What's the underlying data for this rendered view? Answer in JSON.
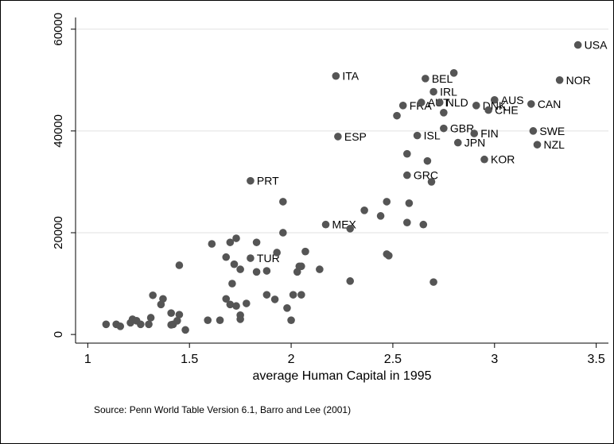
{
  "chart_data": {
    "type": "scatter",
    "xlabel": "average Human Capital in 1995",
    "note": "Source: Penn World Table Version 6.1, Barro and Lee (2001)",
    "xlim": [
      0.94,
      3.56
    ],
    "ylim": [
      -1700,
      62300
    ],
    "xticks": [
      1,
      1.5,
      2,
      2.5,
      3,
      3.5
    ],
    "yticks": [
      0,
      20000,
      40000,
      60000
    ],
    "grid": true,
    "color": "#555555",
    "x": [
      3.41,
      2.22,
      2.66,
      2.7,
      2.55,
      2.64,
      2.73,
      3.0,
      2.91,
      2.97,
      3.18,
      3.32,
      2.75,
      2.62,
      2.9,
      2.82,
      3.19,
      3.21,
      2.23,
      2.95,
      1.8,
      2.57,
      2.17,
      1.8,
      2.8,
      2.52,
      2.75,
      2.57,
      2.67,
      2.69,
      2.47,
      2.58,
      2.36,
      2.44,
      1.96,
      2.57,
      2.65,
      2.29,
      1.96,
      2.47,
      2.48,
      2.07,
      1.61,
      1.7,
      1.73,
      1.83,
      1.93,
      1.45,
      1.68,
      1.72,
      1.75,
      1.83,
      1.88,
      2.04,
      2.05,
      2.03,
      2.14,
      2.29,
      2.7,
      1.71,
      1.32,
      1.37,
      1.36,
      1.68,
      1.7,
      1.73,
      1.78,
      1.88,
      1.92,
      2.01,
      2.05,
      1.41,
      1.45,
      1.75,
      1.75,
      1.98,
      2.0,
      1.42,
      1.44,
      1.31,
      1.22,
      1.21,
      1.26,
      1.3,
      1.24,
      1.09,
      1.14,
      1.16,
      1.59,
      1.65,
      1.48,
      1.41
    ],
    "y": [
      56900,
      50800,
      50300,
      47700,
      45000,
      45600,
      45600,
      46100,
      45000,
      44100,
      45300,
      50000,
      40500,
      39100,
      39500,
      37700,
      40000,
      37300,
      38900,
      34400,
      30200,
      31300,
      21600,
      15000,
      51400,
      43000,
      43600,
      35500,
      34100,
      30000,
      26100,
      25800,
      24400,
      23300,
      26100,
      22000,
      21600,
      20800,
      20000,
      15800,
      15500,
      16300,
      17800,
      18100,
      18900,
      18100,
      16100,
      13600,
      15200,
      13800,
      12800,
      12300,
      12500,
      13400,
      13400,
      12300,
      12800,
      10500,
      10300,
      10000,
      7700,
      7000,
      5900,
      7000,
      5900,
      5600,
      6100,
      7800,
      6900,
      7800,
      7800,
      4200,
      3900,
      3800,
      3000,
      5200,
      2800,
      2000,
      2700,
      3300,
      3000,
      2300,
      2000,
      2000,
      2700,
      2000,
      2000,
      1600,
      2800,
      2800,
      900,
      1900
    ],
    "labels": [
      "USA",
      "ITA",
      "BEL",
      "IRL",
      "FRA",
      "AUT",
      "NLD",
      "AUS",
      "DNK",
      "CHE",
      "CAN",
      "NOR",
      "GBR",
      "ISL",
      "FIN",
      "JPN",
      "SWE",
      "NZL",
      "ESP",
      "KOR",
      "PRT",
      "GRC",
      "MEX",
      "TUR",
      null,
      null,
      null,
      null,
      null,
      null,
      null,
      null,
      null,
      null,
      null,
      null,
      null,
      null,
      null,
      null,
      null,
      null,
      null,
      null,
      null,
      null,
      null,
      null,
      null,
      null,
      null,
      null,
      null,
      null,
      null,
      null,
      null,
      null,
      null,
      null,
      null,
      null,
      null,
      null,
      null,
      null,
      null,
      null,
      null,
      null,
      null,
      null,
      null,
      null,
      null,
      null,
      null,
      null,
      null,
      null,
      null,
      null,
      null,
      null,
      null,
      null,
      null,
      null
    ]
  }
}
